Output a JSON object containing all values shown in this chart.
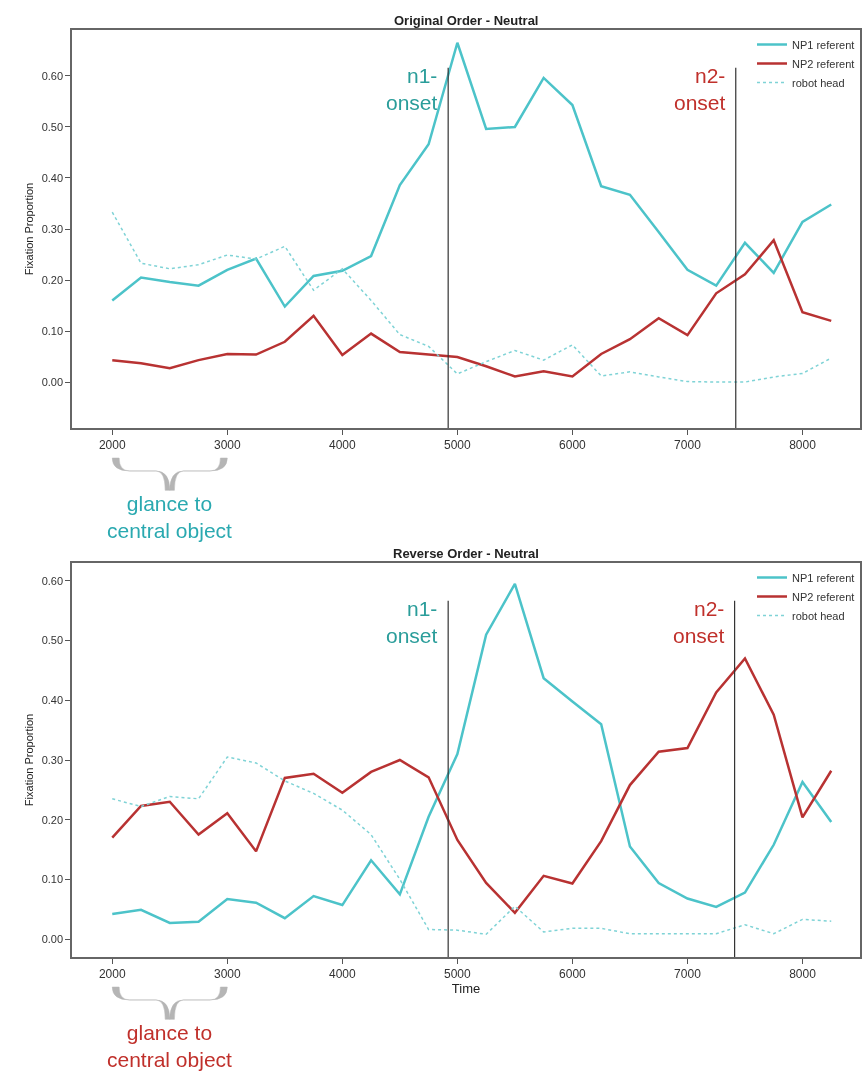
{
  "chart_data": [
    {
      "type": "line",
      "title": "Original Order - Neutral",
      "ylabel": "Fixation Proportion",
      "annotations": [
        "glance to\ncentral object"
      ],
      "x": [
        2000,
        2250,
        2500,
        2750,
        3000,
        3250,
        3500,
        3750,
        4000,
        4250,
        4500,
        4750,
        5000,
        5250,
        5500,
        5750,
        6000,
        6250,
        6500,
        6750,
        7000,
        7250,
        7500,
        7750,
        8000,
        8250
      ],
      "series": [
        {
          "name": "NP1 referent",
          "color": "#4cc3c9",
          "line_style": "solid",
          "values": [
            0.16,
            0.205,
            0.196,
            0.189,
            0.22,
            0.242,
            0.148,
            0.208,
            0.218,
            0.247,
            0.386,
            0.466,
            0.665,
            0.496,
            0.5,
            0.596,
            0.543,
            0.384,
            0.367,
            0.294,
            0.22,
            0.189,
            0.273,
            0.214,
            0.314,
            0.348
          ]
        },
        {
          "name": "NP2 referent",
          "color": "#b83232",
          "line_style": "solid",
          "values": [
            0.043,
            0.037,
            0.027,
            0.043,
            0.055,
            0.054,
            0.079,
            0.13,
            0.053,
            0.095,
            0.059,
            0.054,
            0.049,
            0.031,
            0.011,
            0.021,
            0.011,
            0.055,
            0.084,
            0.125,
            0.092,
            0.174,
            0.211,
            0.278,
            0.137,
            0.12
          ]
        },
        {
          "name": "robot head",
          "color": "#7fd3d6",
          "line_style": "dotted",
          "values": [
            0.333,
            0.233,
            0.222,
            0.23,
            0.249,
            0.241,
            0.266,
            0.18,
            0.222,
            0.16,
            0.093,
            0.07,
            0.016,
            0.04,
            0.062,
            0.043,
            0.073,
            0.012,
            0.02,
            0.01,
            0.001,
            0,
            0,
            0.01,
            0.017,
            0.047
          ]
        }
      ],
      "xlim": [
        1650,
        8500
      ],
      "ylim": [
        -0.09,
        0.69
      ],
      "xticks": [
        2000,
        3000,
        4000,
        5000,
        6000,
        7000,
        8000
      ],
      "yticks": [
        {
          "value": 0,
          "label": "0.00"
        },
        {
          "value": 0.1,
          "label": "0.10"
        },
        {
          "value": 0.2,
          "label": "0.20"
        },
        {
          "value": 0.3,
          "label": "0.30"
        },
        {
          "value": 0.4,
          "label": "0.40"
        },
        {
          "value": 0.5,
          "label": "0.50"
        },
        {
          "value": 0.6,
          "label": "0.60"
        }
      ],
      "ref_lines": [
        {
          "axis": "x",
          "value": 4920,
          "label": "n1-\nonset",
          "color": "#333333"
        },
        {
          "axis": "x",
          "value": 7420,
          "label": "n2-\nonset",
          "color": "#333333"
        }
      ],
      "legend": "top right"
    },
    {
      "type": "line",
      "title": "Reverse Order - Neutral",
      "xlabel": "Time",
      "ylabel": "Fixation Proportion",
      "annotations": [
        "glance to\ncentral object"
      ],
      "x": [
        2000,
        2250,
        2500,
        2750,
        3000,
        3250,
        3500,
        3750,
        4000,
        4250,
        4500,
        4750,
        5000,
        5250,
        5500,
        5750,
        6000,
        6250,
        6500,
        6750,
        7000,
        7250,
        7500,
        7750,
        8000,
        8250
      ],
      "series": [
        {
          "name": "NP1 referent",
          "color": "#4cc3c9",
          "line_style": "solid",
          "values": [
            0.042,
            0.049,
            0.027,
            0.029,
            0.067,
            0.061,
            0.035,
            0.072,
            0.057,
            0.132,
            0.075,
            0.205,
            0.31,
            0.51,
            0.595,
            0.437,
            0.398,
            0.36,
            0.155,
            0.094,
            0.068,
            0.054,
            0.078,
            0.158,
            0.263,
            0.196
          ]
        },
        {
          "name": "NP2 referent",
          "color": "#b83232",
          "line_style": "solid",
          "values": [
            0.17,
            0.223,
            0.23,
            0.175,
            0.211,
            0.147,
            0.27,
            0.277,
            0.245,
            0.28,
            0.3,
            0.271,
            0.166,
            0.094,
            0.044,
            0.106,
            0.093,
            0.164,
            0.258,
            0.314,
            0.32,
            0.413,
            0.47,
            0.376,
            0.204,
            0.282
          ]
        },
        {
          "name": "robot head",
          "color": "#7fd3d6",
          "line_style": "dotted",
          "values": [
            0.235,
            0.222,
            0.239,
            0.235,
            0.305,
            0.295,
            0.265,
            0.244,
            0.216,
            0.175,
            0.1,
            0.016,
            0.015,
            0.008,
            0.055,
            0.012,
            0.018,
            0.018,
            0.009,
            0.009,
            0.009,
            0.009,
            0.024,
            0.009,
            0.033,
            0.03
          ]
        }
      ],
      "xlim": [
        1650,
        8500
      ],
      "ylim": [
        -0.03,
        0.63
      ],
      "xticks": [
        2000,
        3000,
        4000,
        5000,
        6000,
        7000,
        8000
      ],
      "yticks": [
        {
          "value": 0,
          "label": "0.00"
        },
        {
          "value": 0.1,
          "label": "0.10"
        },
        {
          "value": 0.2,
          "label": "0.20"
        },
        {
          "value": 0.3,
          "label": "0.30"
        },
        {
          "value": 0.4,
          "label": "0.40"
        },
        {
          "value": 0.5,
          "label": "0.50"
        },
        {
          "value": 0.6,
          "label": "0.60"
        }
      ],
      "ref_lines": [
        {
          "axis": "x",
          "value": 4920,
          "label": "n1-\nonset",
          "color": "#333333"
        },
        {
          "axis": "x",
          "value": 7410,
          "label": "n2-\nonset",
          "color": "#333333"
        }
      ],
      "legend": "top right"
    }
  ]
}
